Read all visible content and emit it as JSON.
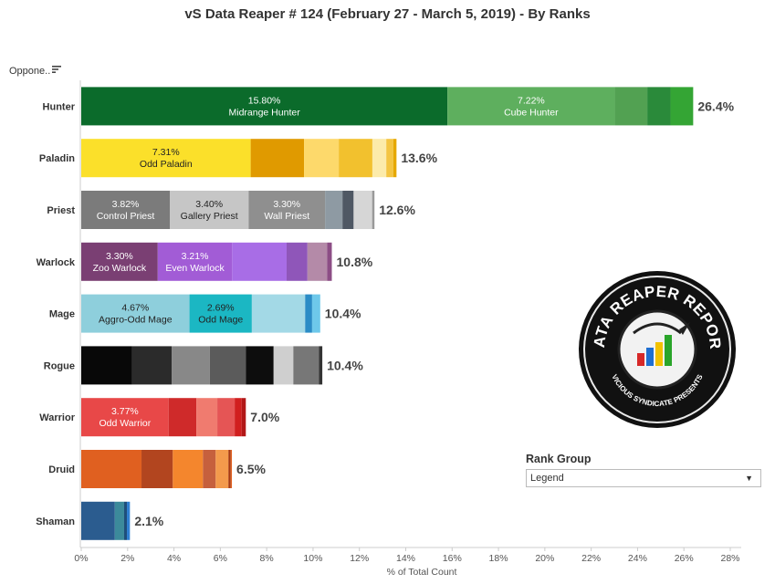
{
  "title": "vS Data Reaper #  124 (February 27 - March 5, 2019) - By Ranks",
  "filter": {
    "label": "Oppone..",
    "sort_icon": "sort-icon"
  },
  "rank_group": {
    "title": "Rank Group",
    "selected": "Legend",
    "arrow": "▼"
  },
  "logo": {
    "text_top": "DATA REAPER REPORT",
    "text_bottom": "VICIOUS SYNDICATE PRESENTS"
  },
  "chart_data": {
    "type": "bar",
    "orientation": "horizontal",
    "stacked": true,
    "xlabel": "% of Total Count",
    "xlim": [
      0,
      28
    ],
    "xticks": [
      "0%",
      "2%",
      "4%",
      "6%",
      "8%",
      "10%",
      "12%",
      "14%",
      "16%",
      "18%",
      "20%",
      "22%",
      "24%",
      "26%",
      "28%"
    ],
    "grid": false,
    "categories": [
      {
        "name": "Hunter",
        "total": "26.4%",
        "segments": [
          {
            "value": 15.8,
            "label": "15.80%",
            "archetype": "Midrange Hunter",
            "color": "#0b6b2b"
          },
          {
            "value": 7.22,
            "label": "7.22%",
            "archetype": "Cube Hunter",
            "color": "#5eaf5e"
          },
          {
            "value": 1.4,
            "color": "#52a152"
          },
          {
            "value": 1.0,
            "color": "#2a8a3a"
          },
          {
            "value": 0.98,
            "color": "#34a534"
          }
        ]
      },
      {
        "name": "Paladin",
        "total": "13.6%",
        "segments": [
          {
            "value": 7.31,
            "label": "7.31%",
            "archetype": "Odd Paladin",
            "color": "#fbe02a",
            "dark_text": true
          },
          {
            "value": 2.3,
            "color": "#e09a00"
          },
          {
            "value": 1.5,
            "color": "#fdd96b"
          },
          {
            "value": 1.45,
            "color": "#f2c12e"
          },
          {
            "value": 0.6,
            "color": "#fcebaa"
          },
          {
            "value": 0.3,
            "color": "#f4c542"
          },
          {
            "value": 0.14,
            "color": "#e6a800"
          }
        ]
      },
      {
        "name": "Priest",
        "total": "12.6%",
        "segments": [
          {
            "value": 3.82,
            "label": "3.82%",
            "archetype": "Control Priest",
            "color": "#7b7b7b"
          },
          {
            "value": 3.4,
            "label": "3.40%",
            "archetype": "Gallery Priest",
            "color": "#c6c6c6",
            "dark_text": true
          },
          {
            "value": 3.3,
            "label": "3.30%",
            "archetype": "Wall Priest",
            "color": "#8f8f8f"
          },
          {
            "value": 0.75,
            "color": "#8e9aa3"
          },
          {
            "value": 0.48,
            "color": "#4f5864"
          },
          {
            "value": 0.8,
            "color": "#d6d6d6"
          },
          {
            "value": 0.1,
            "color": "#999999"
          }
        ]
      },
      {
        "name": "Warlock",
        "total": "10.8%",
        "segments": [
          {
            "value": 3.3,
            "label": "3.30%",
            "archetype": "Zoo Warlock",
            "color": "#7a3f73"
          },
          {
            "value": 3.21,
            "label": "3.21%",
            "archetype": "Even Warlock",
            "color": "#a25cd6"
          },
          {
            "value": 2.35,
            "color": "#a86de6"
          },
          {
            "value": 0.9,
            "color": "#8f56b9"
          },
          {
            "value": 0.85,
            "color": "#b48aa8"
          },
          {
            "value": 0.2,
            "color": "#8c4d85"
          }
        ]
      },
      {
        "name": "Mage",
        "total": "10.4%",
        "segments": [
          {
            "value": 4.67,
            "label": "4.67%",
            "archetype": "Aggro-Odd Mage",
            "color": "#8ecfdc",
            "dark_text": true
          },
          {
            "value": 2.69,
            "label": "2.69%",
            "archetype": "Odd Mage",
            "color": "#1bb7c3",
            "dark_text": true
          },
          {
            "value": 2.3,
            "color": "#a3d9e6"
          },
          {
            "value": 0.3,
            "color": "#2a8cc6"
          },
          {
            "value": 0.35,
            "color": "#6ec8ea"
          }
        ]
      },
      {
        "name": "Rogue",
        "total": "10.4%",
        "segments": [
          {
            "value": 2.2,
            "color": "#080808"
          },
          {
            "value": 1.7,
            "color": "#2b2b2b"
          },
          {
            "value": 1.65,
            "color": "#888888"
          },
          {
            "value": 1.55,
            "color": "#5b5b5b"
          },
          {
            "value": 1.2,
            "color": "#0d0d0d"
          },
          {
            "value": 0.85,
            "color": "#cfcfcf"
          },
          {
            "value": 1.1,
            "color": "#777777"
          },
          {
            "value": 0.15,
            "color": "#333333"
          }
        ]
      },
      {
        "name": "Warrior",
        "total": "7.0%",
        "segments": [
          {
            "value": 3.77,
            "label": "3.77%",
            "archetype": "Odd Warrior",
            "color": "#e84848"
          },
          {
            "value": 1.2,
            "color": "#cf2a2a"
          },
          {
            "value": 0.9,
            "color": "#f07b6f"
          },
          {
            "value": 0.75,
            "color": "#e55555"
          },
          {
            "value": 0.3,
            "color": "#d11f1f"
          },
          {
            "value": 0.18,
            "color": "#b21818"
          }
        ]
      },
      {
        "name": "Druid",
        "total": "6.5%",
        "segments": [
          {
            "value": 2.6,
            "color": "#e06020"
          },
          {
            "value": 1.35,
            "color": "#b2451f"
          },
          {
            "value": 1.3,
            "color": "#f4862d"
          },
          {
            "value": 0.55,
            "color": "#c6603d"
          },
          {
            "value": 0.55,
            "color": "#f39a4c"
          },
          {
            "value": 0.1,
            "color": "#a83a10"
          },
          {
            "value": 0.05,
            "color": "#e06020"
          }
        ]
      },
      {
        "name": "Shaman",
        "total": "2.1%",
        "segments": [
          {
            "value": 1.45,
            "color": "#2b5c8f"
          },
          {
            "value": 0.4,
            "color": "#3c8a9b"
          },
          {
            "value": 0.12,
            "color": "#1f4e7a"
          },
          {
            "value": 0.13,
            "color": "#2f7fd1"
          }
        ]
      }
    ]
  }
}
